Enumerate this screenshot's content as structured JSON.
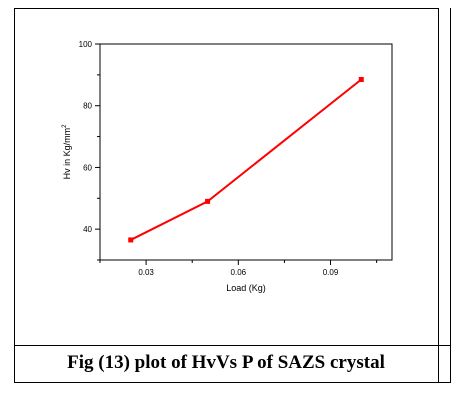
{
  "caption": "Fig (13) plot of HvVs P of SAZS crystal",
  "colors": {
    "series": "#ff0000",
    "axes": "#000000",
    "background": "#ffffff"
  },
  "chart_data": {
    "type": "line",
    "title": "",
    "xlabel": "Load (Kg)",
    "ylabel": "Hv in Kg/mm",
    "ylabel_superscript": "2",
    "xlim": [
      0.015,
      0.11
    ],
    "ylim": [
      30,
      100
    ],
    "xticks": [
      0.03,
      0.06,
      0.09
    ],
    "xtick_labels": [
      "0.03",
      "0.06",
      "0.09"
    ],
    "yticks": [
      40,
      60,
      80,
      100
    ],
    "ytick_labels": [
      "40",
      "60",
      "80",
      "100"
    ],
    "grid": false,
    "legend": "none",
    "series": [
      {
        "x": [
          0.025,
          0.05,
          0.1
        ],
        "y": [
          36.5,
          49,
          88.5
        ]
      }
    ]
  }
}
